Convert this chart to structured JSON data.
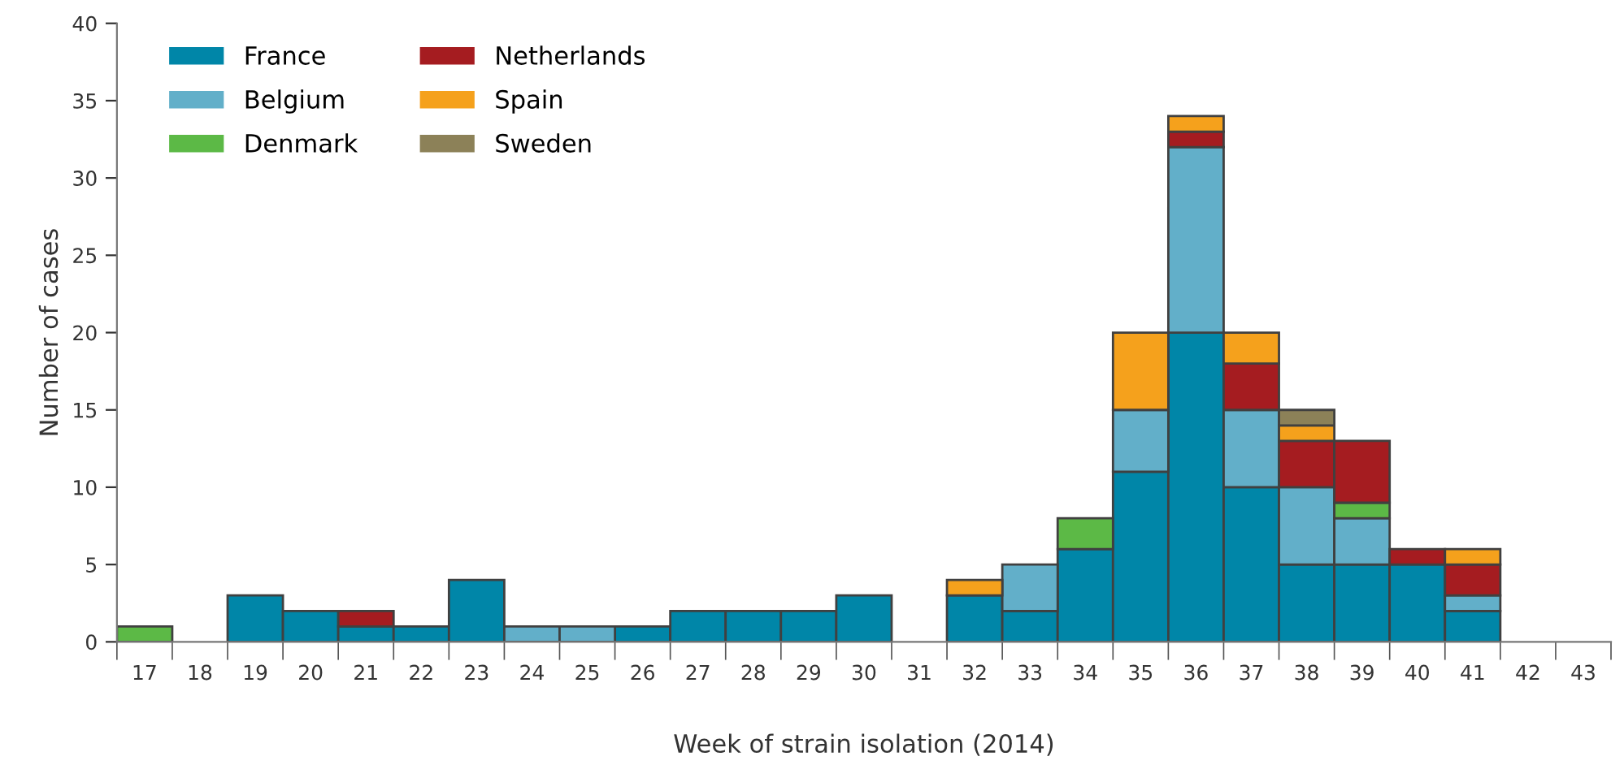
{
  "chart_data": {
    "type": "bar",
    "stacked": true,
    "xlabel": "Week of strain isolation (2014)",
    "ylabel": "Number of cases",
    "categories": [
      "17",
      "18",
      "19",
      "20",
      "21",
      "22",
      "23",
      "24",
      "25",
      "26",
      "27",
      "28",
      "29",
      "30",
      "31",
      "32",
      "33",
      "34",
      "35",
      "36",
      "37",
      "38",
      "39",
      "40",
      "41",
      "42",
      "43"
    ],
    "series": [
      {
        "name": "France",
        "color": "#0086a8",
        "values": [
          0,
          0,
          3,
          2,
          1,
          1,
          4,
          0,
          0,
          1,
          2,
          2,
          2,
          3,
          0,
          3,
          2,
          6,
          11,
          20,
          10,
          5,
          5,
          5,
          2,
          0,
          0
        ]
      },
      {
        "name": "Belgium",
        "color": "#62afc9",
        "values": [
          0,
          0,
          0,
          0,
          0,
          0,
          0,
          1,
          1,
          0,
          0,
          0,
          0,
          0,
          0,
          0,
          3,
          0,
          4,
          12,
          5,
          5,
          3,
          0,
          1,
          0,
          0
        ]
      },
      {
        "name": "Denmark",
        "color": "#5cb946",
        "values": [
          1,
          0,
          0,
          0,
          0,
          0,
          0,
          0,
          0,
          0,
          0,
          0,
          0,
          0,
          0,
          0,
          0,
          2,
          0,
          0,
          0,
          0,
          1,
          0,
          0,
          0,
          0
        ]
      },
      {
        "name": "Netherlands",
        "color": "#a51c20",
        "values": [
          0,
          0,
          0,
          0,
          1,
          0,
          0,
          0,
          0,
          0,
          0,
          0,
          0,
          0,
          0,
          0,
          0,
          0,
          0,
          1,
          3,
          3,
          4,
          1,
          2,
          0,
          0
        ]
      },
      {
        "name": "Spain",
        "color": "#f5a11c",
        "values": [
          0,
          0,
          0,
          0,
          0,
          0,
          0,
          0,
          0,
          0,
          0,
          0,
          0,
          0,
          0,
          1,
          0,
          0,
          5,
          1,
          2,
          1,
          0,
          0,
          1,
          0,
          0
        ]
      },
      {
        "name": "Sweden",
        "color": "#8c8158",
        "values": [
          0,
          0,
          0,
          0,
          0,
          0,
          0,
          0,
          0,
          0,
          0,
          0,
          0,
          0,
          0,
          0,
          0,
          0,
          0,
          0,
          0,
          1,
          0,
          0,
          0,
          0,
          0
        ]
      }
    ],
    "ylim": [
      0,
      40
    ],
    "yticks": [
      0,
      5,
      10,
      15,
      20,
      25,
      30,
      35,
      40
    ],
    "grid": false,
    "legend": "top left"
  }
}
